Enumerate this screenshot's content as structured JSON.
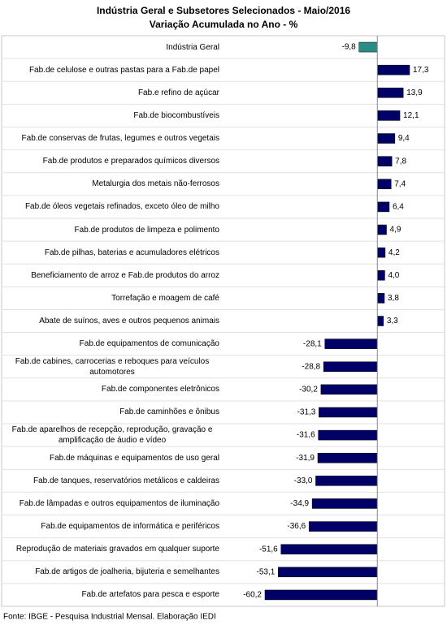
{
  "chart_data": {
    "type": "hbar",
    "title": "Indústria Geral e Subsetores Selecionados - Maio/2016",
    "subtitle": "Variação Acumulada no Ano - %",
    "categories": [
      "Indústria Geral",
      "Fab.de celulose e outras pastas para a Fab.de papel",
      "Fab.e refino de açúcar",
      "Fab.de biocombustíveis",
      "Fab.de conservas de frutas, legumes e outros vegetais",
      "Fab.de produtos e preparados químicos diversos",
      "Metalurgia dos metais não-ferrosos",
      "Fab.de óleos vegetais refinados, exceto óleo de milho",
      "Fab.de produtos de limpeza e polimento",
      "Fab.de pilhas, baterias e acumuladores elétricos",
      "Beneficiamento de arroz e Fab.de produtos do arroz",
      "Torrefação e moagem de café",
      "Abate de suínos, aves e outros pequenos animais",
      "Fab.de equipamentos de comunicação",
      "Fab.de cabines, carrocerias e reboques para veículos automotores",
      "Fab.de componentes eletrônicos",
      "Fab.de caminhões e ônibus",
      "Fab.de aparelhos de recepção, reprodução, gravação e amplificação de áudio e vídeo",
      "Fab.de máquinas e equipamentos de uso geral",
      "Fab.de tanques, reservatórios metálicos e caldeiras",
      "Fab.de lâmpadas e outros equipamentos de iluminação",
      "Fab.de equipamentos de informática e periféricos",
      "Reprodução de materiais gravados em qualquer suporte",
      "Fab.de artigos de joalheria, bijuteria e semelhantes",
      "Fab.de artefatos para pesca e esporte"
    ],
    "values": [
      -9.8,
      17.3,
      13.9,
      12.1,
      9.4,
      7.8,
      7.4,
      6.4,
      4.9,
      4.2,
      4.0,
      3.8,
      3.3,
      -28.1,
      -28.8,
      -30.2,
      -31.3,
      -31.6,
      -31.9,
      -33.0,
      -34.9,
      -36.6,
      -51.6,
      -53.1,
      -60.2
    ],
    "value_labels": [
      "-9,8",
      "17,3",
      "13,9",
      "12,1",
      "9,4",
      "7,8",
      "7,4",
      "6,4",
      "4,9",
      "4,2",
      "4,0",
      "3,8",
      "3,3",
      "-28,1",
      "-28,8",
      "-30,2",
      "-31,3",
      "-31,6",
      "-31,9",
      "-33,0",
      "-34,9",
      "-36,6",
      "-51,6",
      "-53,1",
      "-60,2"
    ],
    "colors": [
      "#2b8c84",
      "#000066",
      "#000066",
      "#000066",
      "#000066",
      "#000066",
      "#000066",
      "#000066",
      "#000066",
      "#000066",
      "#000066",
      "#000066",
      "#000066",
      "#000066",
      "#000066",
      "#000066",
      "#000066",
      "#000066",
      "#000066",
      "#000066",
      "#000066",
      "#000066",
      "#000066",
      "#000066",
      "#000066"
    ],
    "source": "Fonte: IBGE - Pesquisa Industrial Mensal. Elaboração IEDI"
  }
}
